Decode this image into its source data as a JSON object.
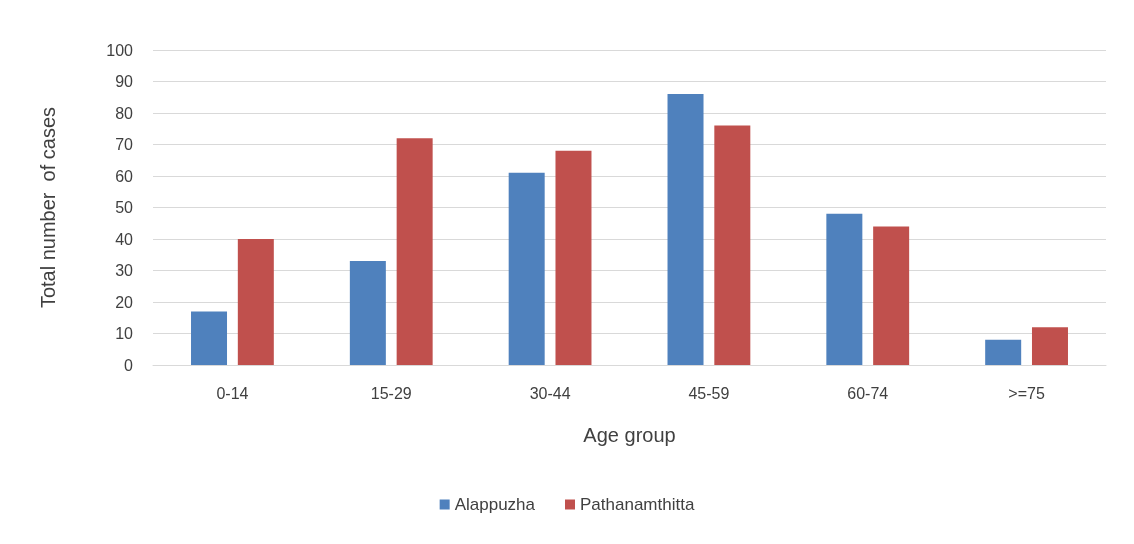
{
  "chart_data": {
    "type": "bar",
    "xlabel": "Age group",
    "ylabel": "Total number  of cases",
    "categories": [
      "0-14",
      "15-29",
      "30-44",
      "45-59",
      "60-74",
      ">=75"
    ],
    "series": [
      {
        "name": "Alappuzha",
        "color": "#4f81bd",
        "values": [
          17,
          33,
          61,
          86,
          48,
          8
        ]
      },
      {
        "name": "Pathanamthitta",
        "color": "#c0504d",
        "values": [
          40,
          72,
          68,
          76,
          44,
          12
        ]
      }
    ],
    "ylim": [
      0,
      100
    ],
    "yticks": [
      0,
      10,
      20,
      30,
      40,
      50,
      60,
      70,
      80,
      90,
      100
    ],
    "grid": "y",
    "legend": "bottom"
  }
}
